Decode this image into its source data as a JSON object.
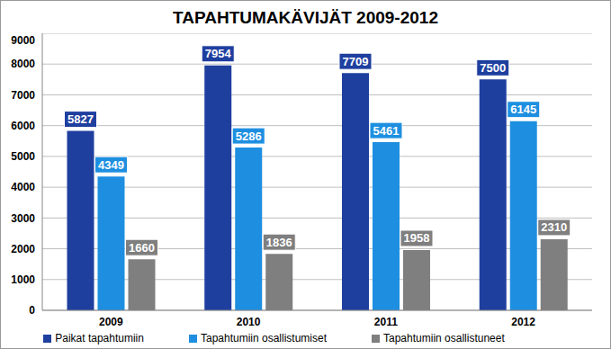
{
  "chart_data": {
    "type": "bar",
    "title": "TAPAHTUMAKÄVIJÄT 2009-2012",
    "categories": [
      "2009",
      "2010",
      "2011",
      "2012"
    ],
    "series": [
      {
        "name": "Paikat tapahtumiin",
        "color": "#1f3f9f",
        "values": [
          5827,
          7954,
          7709,
          7500
        ]
      },
      {
        "name": "Tapahtumiin osallistumiset",
        "color": "#1e8fe0",
        "values": [
          4349,
          5286,
          5461,
          6145
        ]
      },
      {
        "name": "Tapahtumiin osallistuneet",
        "color": "#7f7f7f",
        "values": [
          1660,
          1836,
          1958,
          2310
        ]
      }
    ],
    "ylim": [
      0,
      9000
    ],
    "yticks": [
      0,
      1000,
      2000,
      3000,
      4000,
      5000,
      6000,
      7000,
      8000,
      9000
    ],
    "grid": true,
    "legend": "bottom",
    "data_labels": true
  }
}
